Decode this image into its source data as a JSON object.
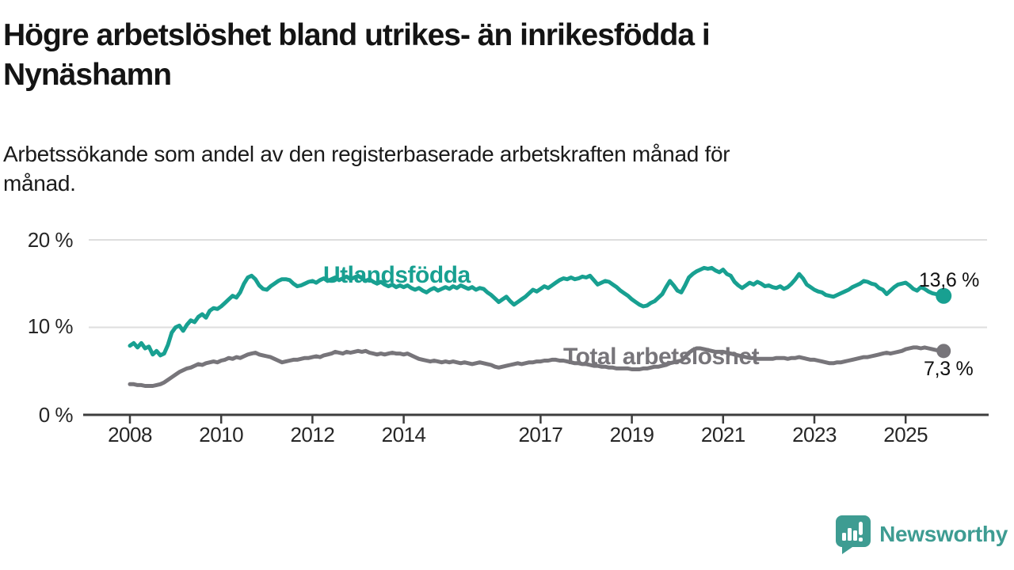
{
  "header": {
    "title_lines": [
      "Högre arbetslöshet bland utrikes- än inrikesfödda i",
      "Nynäshamn"
    ],
    "subtitle_lines": [
      "Arbetssökande som andel av den registerbaserade arbetskraften månad för",
      "månad."
    ]
  },
  "chart_data": {
    "type": "line",
    "title": "Högre arbetslöshet bland utrikes- än inrikesfödda i Nynäshamn",
    "subtitle": "Arbetssökande som andel av den registerbaserade arbetskraften månad för månad.",
    "xlabel": "",
    "ylabel": "",
    "unit": "%",
    "frequency": "monthly",
    "x_start": "2008-01",
    "x_end": "2025-11",
    "ylim": [
      0,
      20
    ],
    "grid": "horizontal-light",
    "legend": "inline-series-labels",
    "y_ticks": [
      20,
      10,
      0
    ],
    "y_tick_labels": [
      "20 %",
      "10 %",
      "0 %"
    ],
    "x_tick_years": [
      2008,
      2010,
      2012,
      2014,
      2017,
      2019,
      2021,
      2023,
      2025
    ],
    "x_tick_labels": [
      "2008",
      "2010",
      "2012",
      "2014",
      "2017",
      "2019",
      "2021",
      "2023",
      "2025"
    ],
    "series": [
      {
        "name": "Utlandsfödda",
        "color": "#18a091",
        "end_label": "13,6 %",
        "end_value": 13.6,
        "values": [
          7.9,
          8.2,
          7.7,
          8.2,
          7.6,
          7.8,
          6.9,
          7.3,
          6.8,
          7.0,
          8.0,
          9.4,
          10.0,
          10.2,
          9.6,
          10.3,
          10.8,
          10.6,
          11.2,
          11.5,
          11.1,
          11.9,
          12.2,
          12.1,
          12.4,
          12.8,
          13.2,
          13.6,
          13.4,
          14.0,
          15.0,
          15.7,
          15.9,
          15.5,
          14.8,
          14.4,
          14.3,
          14.7,
          15.0,
          15.3,
          15.5,
          15.5,
          15.4,
          15.0,
          14.7,
          14.8,
          15.0,
          15.2,
          15.3,
          15.1,
          15.4,
          15.6,
          15.3,
          15.5,
          15.7,
          15.4,
          15.6,
          15.8,
          15.5,
          15.7,
          15.9,
          15.6,
          15.3,
          15.5,
          15.2,
          15.0,
          15.2,
          14.9,
          14.7,
          14.9,
          14.6,
          14.8,
          14.6,
          14.8,
          14.5,
          14.3,
          14.5,
          14.2,
          14.0,
          14.3,
          14.5,
          14.2,
          14.4,
          14.6,
          14.4,
          14.7,
          14.5,
          14.8,
          14.6,
          14.4,
          14.6,
          14.3,
          14.5,
          14.4,
          14.0,
          13.7,
          13.3,
          12.9,
          13.2,
          13.5,
          13.0,
          12.6,
          12.9,
          13.2,
          13.5,
          13.9,
          14.3,
          14.1,
          14.4,
          14.7,
          14.5,
          14.8,
          15.1,
          15.4,
          15.6,
          15.5,
          15.7,
          15.5,
          15.6,
          15.8,
          15.7,
          15.9,
          15.4,
          14.9,
          15.1,
          15.3,
          15.2,
          14.9,
          14.6,
          14.2,
          13.9,
          13.6,
          13.2,
          12.9,
          12.6,
          12.4,
          12.5,
          12.8,
          13.0,
          13.4,
          13.8,
          14.6,
          15.3,
          14.8,
          14.2,
          14.0,
          14.8,
          15.7,
          16.1,
          16.4,
          16.6,
          16.8,
          16.7,
          16.8,
          16.5,
          16.3,
          16.6,
          16.1,
          15.9,
          15.2,
          14.8,
          14.5,
          14.8,
          15.1,
          14.9,
          15.2,
          15.0,
          14.7,
          14.8,
          14.6,
          14.5,
          14.7,
          14.4,
          14.6,
          15.0,
          15.5,
          16.1,
          15.6,
          14.9,
          14.6,
          14.3,
          14.1,
          14.0,
          13.7,
          13.6,
          13.5,
          13.7,
          13.9,
          14.1,
          14.3,
          14.6,
          14.8,
          15.0,
          15.3,
          15.2,
          15.0,
          14.9,
          14.5,
          14.3,
          13.8,
          14.2,
          14.6,
          14.9,
          15.0,
          15.1,
          14.8,
          14.4,
          14.2,
          14.6,
          14.4,
          14.1,
          13.9,
          13.8,
          13.7,
          13.6
        ]
      },
      {
        "name": "Total arbetslöshet",
        "color": "#77757a",
        "end_label": "7,3 %",
        "end_value": 7.3,
        "values": [
          3.5,
          3.5,
          3.4,
          3.4,
          3.3,
          3.3,
          3.3,
          3.4,
          3.5,
          3.7,
          4.0,
          4.3,
          4.6,
          4.9,
          5.1,
          5.3,
          5.4,
          5.6,
          5.8,
          5.7,
          5.9,
          6.0,
          6.1,
          6.0,
          6.2,
          6.3,
          6.5,
          6.4,
          6.6,
          6.5,
          6.7,
          6.9,
          7.0,
          7.1,
          6.9,
          6.8,
          6.7,
          6.6,
          6.4,
          6.2,
          6.0,
          6.1,
          6.2,
          6.3,
          6.3,
          6.4,
          6.5,
          6.5,
          6.6,
          6.7,
          6.6,
          6.8,
          6.9,
          7.0,
          7.2,
          7.1,
          7.0,
          7.2,
          7.1,
          7.2,
          7.3,
          7.2,
          7.3,
          7.1,
          7.0,
          6.9,
          7.0,
          6.9,
          7.0,
          7.1,
          7.0,
          7.0,
          6.9,
          7.0,
          6.8,
          6.6,
          6.4,
          6.3,
          6.2,
          6.1,
          6.2,
          6.1,
          6.0,
          6.1,
          6.0,
          6.1,
          6.0,
          5.9,
          6.0,
          5.9,
          5.8,
          5.9,
          6.0,
          5.9,
          5.8,
          5.7,
          5.5,
          5.4,
          5.5,
          5.6,
          5.7,
          5.8,
          5.9,
          5.8,
          5.9,
          6.0,
          6.0,
          6.1,
          6.1,
          6.2,
          6.2,
          6.3,
          6.3,
          6.2,
          6.2,
          6.1,
          6.0,
          5.9,
          5.9,
          5.8,
          5.8,
          5.7,
          5.6,
          5.6,
          5.5,
          5.5,
          5.4,
          5.4,
          5.3,
          5.3,
          5.3,
          5.3,
          5.2,
          5.2,
          5.2,
          5.3,
          5.3,
          5.4,
          5.5,
          5.5,
          5.6,
          5.7,
          5.9,
          6.0,
          6.1,
          6.2,
          6.6,
          7.1,
          7.4,
          7.6,
          7.6,
          7.5,
          7.4,
          7.3,
          7.2,
          7.2,
          7.2,
          7.1,
          7.0,
          6.9,
          6.8,
          6.7,
          6.6,
          6.5,
          6.5,
          6.4,
          6.4,
          6.4,
          6.4,
          6.4,
          6.5,
          6.5,
          6.5,
          6.4,
          6.5,
          6.5,
          6.6,
          6.5,
          6.4,
          6.3,
          6.3,
          6.2,
          6.1,
          6.0,
          5.9,
          5.9,
          6.0,
          6.0,
          6.1,
          6.2,
          6.3,
          6.4,
          6.5,
          6.6,
          6.6,
          6.7,
          6.8,
          6.9,
          7.0,
          7.1,
          7.0,
          7.1,
          7.2,
          7.3,
          7.5,
          7.6,
          7.7,
          7.7,
          7.6,
          7.7,
          7.6,
          7.5,
          7.4,
          7.4,
          7.3
        ]
      }
    ],
    "style": {
      "grid_color": "#dedede",
      "axis_color": "#3d3d3d",
      "value_label_color": "#111111"
    }
  },
  "branding": {
    "logo_text": "Newsworthy",
    "logo_color": "#3e9c92",
    "logo_icon": "newsworthy-speech-bubble-bar-chart-icon"
  }
}
